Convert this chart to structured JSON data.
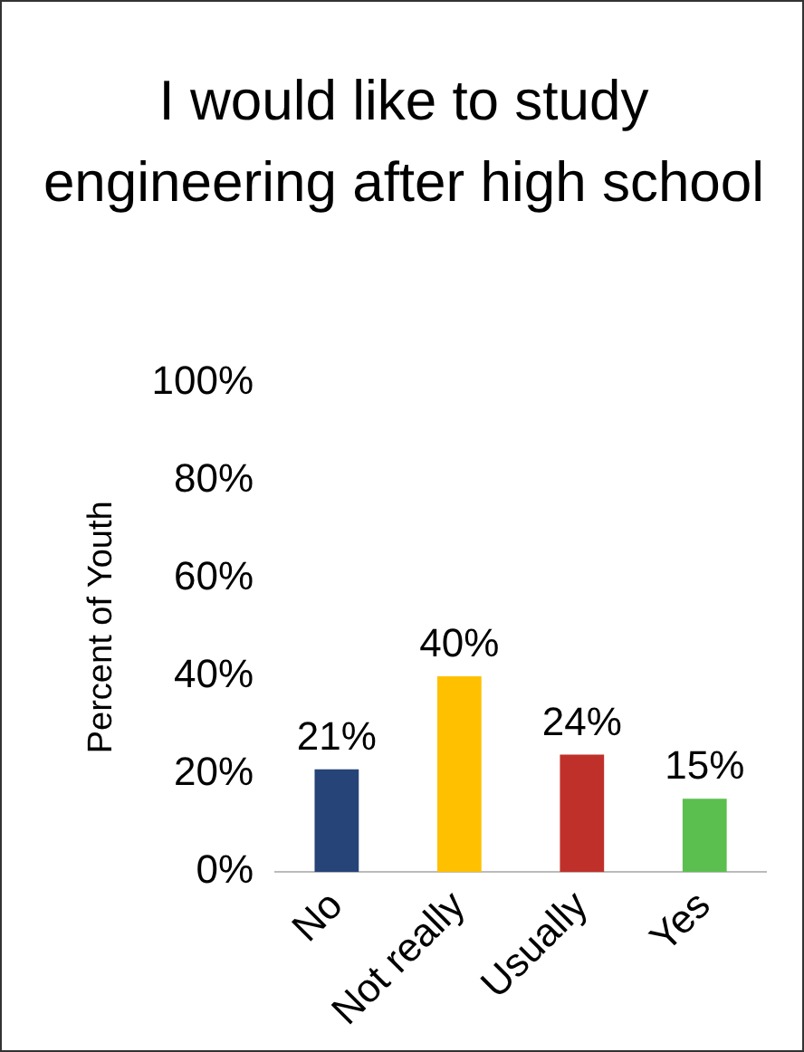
{
  "chart_data": {
    "type": "bar",
    "title": "I would like to study engineering after high school",
    "ylabel": "Percent of Youth",
    "categories": [
      "No",
      "Not really",
      "Usually",
      "Yes"
    ],
    "values": [
      21,
      40,
      24,
      15
    ],
    "colors": [
      "#264478",
      "#ffc000",
      "#c0302a",
      "#5bbf4f"
    ],
    "value_labels": [
      "21%",
      "40%",
      "24%",
      "15%"
    ],
    "ylim": [
      0,
      100
    ],
    "yticks": [
      {
        "value": 0,
        "label": "0%"
      },
      {
        "value": 20,
        "label": "20%"
      },
      {
        "value": 40,
        "label": "40%"
      },
      {
        "value": 60,
        "label": "60%"
      },
      {
        "value": 80,
        "label": "80%"
      },
      {
        "value": 100,
        "label": "100%"
      }
    ],
    "grid": false,
    "legend": false
  }
}
